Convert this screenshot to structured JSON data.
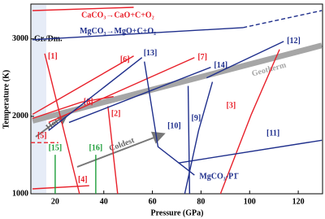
{
  "chart_data": {
    "type": "line",
    "x_label": "Pressure (GPa)",
    "y_label": "Temperature (K)",
    "xlim": [
      10,
      130
    ],
    "ylim": [
      1000,
      3450
    ],
    "xticks": [
      20,
      40,
      60,
      80,
      100,
      120
    ],
    "yticks": [
      1000,
      2000,
      3000
    ],
    "annotations": [
      "Gr./Dm.",
      "Hot",
      "Coldest"
    ],
    "series": [
      {
        "name": "CaCO₃→CaO+C+O₂",
        "color": "#e8202a",
        "x": [
          10.7,
          52.3
        ],
        "values": [
          3366,
          3408
        ]
      },
      {
        "name": "MgCO₃→MgO+C+O₂",
        "color": "#1f2f8c",
        "x": [
          10.7,
          97.3
        ],
        "values": [
          2989,
          3146
        ]
      },
      {
        "color": "#1f2f8c",
        "dashed": true,
        "x": [
          97.3,
          129.7
        ],
        "values": [
          3146,
          3366
        ]
      },
      {
        "name": "Geotherm",
        "color": "#a6a6a6",
        "x": [
          10.7,
          129.7
        ],
        "values": [
          1942,
          2916
        ]
      },
      {
        "name": "[1]",
        "color": "#e8202a",
        "x": [
          15.7,
          30
        ],
        "values": [
          2811,
          1000
        ]
      },
      {
        "name": "[2]",
        "color": "#e8202a",
        "x": [
          41.7,
          45.7
        ],
        "values": [
          2131,
          1000
        ]
      },
      {
        "name": "[3]",
        "color": "#e8202a",
        "x": [
          112.3,
          100.7,
          88
        ],
        "values": [
          2864,
          2026,
          1000
        ]
      },
      {
        "name": "[4]",
        "color": "#e8202a",
        "x": [
          10.7,
          34
        ],
        "values": [
          1063,
          1105
        ]
      },
      {
        "name": "[5]",
        "color": "#e8202a",
        "dashed": true,
        "x": [
          10,
          21.3
        ],
        "values": [
          1660,
          1660
        ]
      },
      {
        "name": "[6]",
        "color": "#e8202a",
        "x": [
          10.7,
          52.3
        ],
        "values": [
          2026,
          2780
        ]
      },
      {
        "name": "[7]",
        "color": "#e8202a",
        "x": [
          17.3,
          77.3
        ],
        "values": [
          1921,
          2759
        ]
      },
      {
        "name": "[8]",
        "color": "#e8202a",
        "x": [
          10.7,
          30.7,
          44
        ],
        "values": [
          1974,
          2183,
          2256
        ]
      },
      {
        "name": "[9]",
        "color": "#1f2f8c",
        "x": [
          74.7,
          75.3
        ],
        "values": [
          2393,
          1000
        ]
      },
      {
        "name": "[10]",
        "color": "#1f2f8c",
        "x": [
          84.7,
          79,
          73.3
        ],
        "values": [
          2445,
          1817,
          1000
        ]
      },
      {
        "name": "[11]",
        "color": "#1f2f8c",
        "x": [
          70.7,
          129.7
        ],
        "values": [
          1398,
          1691
        ]
      },
      {
        "name": "[12]",
        "color": "#1f2f8c",
        "x": [
          82.3,
          114
        ],
        "values": [
          2497,
          2968
        ]
      },
      {
        "name": "[13]",
        "color": "#1f2f8c",
        "x": [
          17.3,
          55.7
        ],
        "values": [
          1817,
          2759
        ]
      },
      {
        "name": "[14]",
        "color": "#1f2f8c",
        "x": [
          25.7,
          84
        ],
        "values": [
          1921,
          2633
        ]
      },
      {
        "name": "[15]",
        "color": "#1e9e3a",
        "x": [
          20,
          20
        ],
        "values": [
          1000,
          1503
        ]
      },
      {
        "name": "[16]",
        "color": "#1e9e3a",
        "x": [
          36.7,
          36.7
        ],
        "values": [
          1000,
          1503
        ]
      },
      {
        "name": "MgCO₃-P1̄",
        "color": "#1f2f8c",
        "x": [
          56.7,
          62.3,
          77.3
        ],
        "values": [
          2707,
          1607,
          1241
        ]
      }
    ]
  }
}
